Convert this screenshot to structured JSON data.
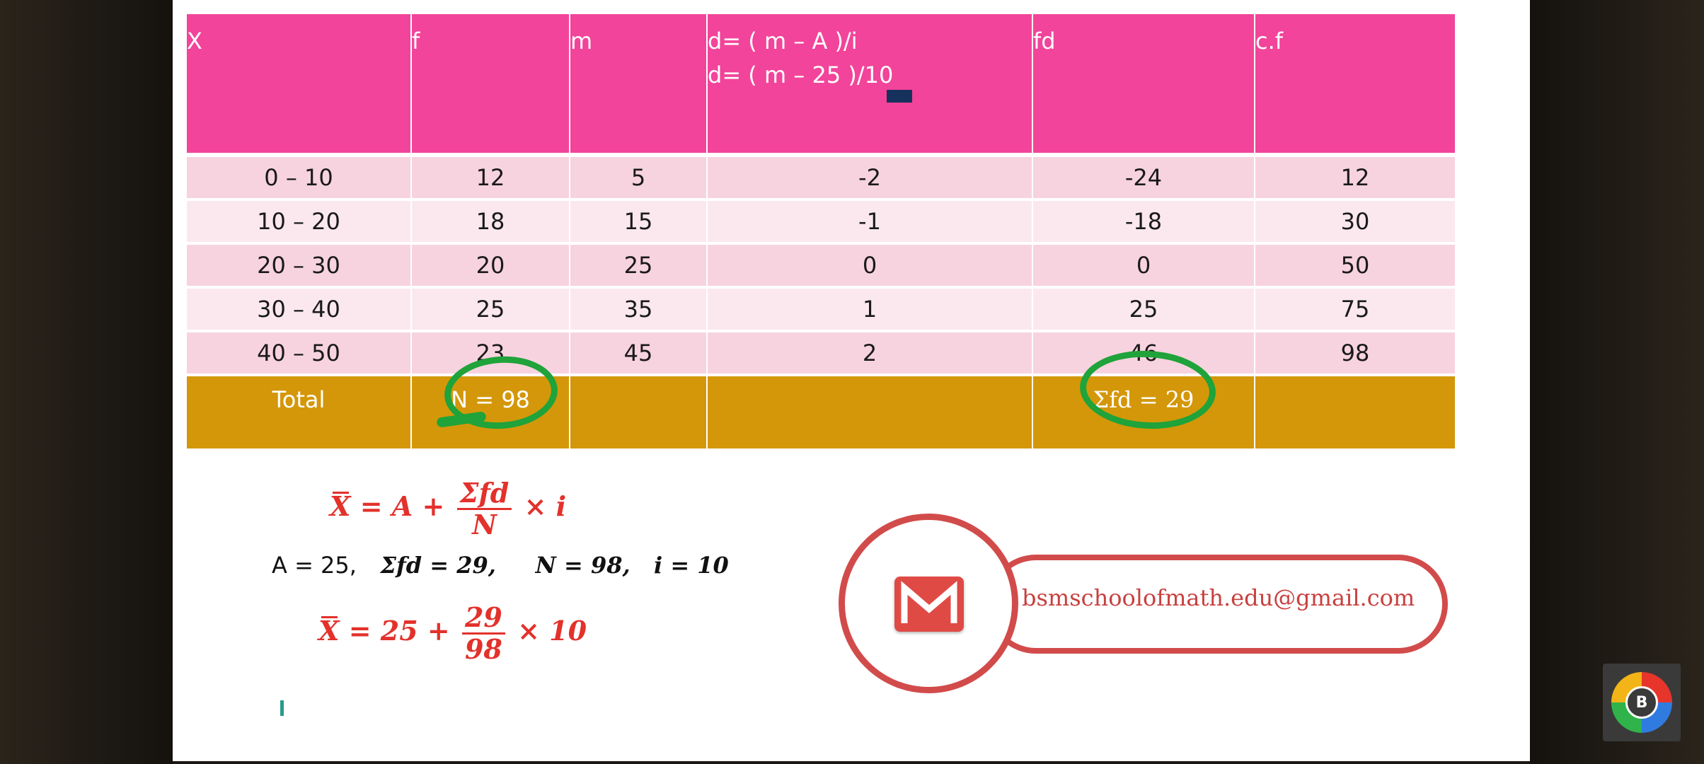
{
  "table": {
    "headers": {
      "x": "X",
      "f": "f",
      "m": "m",
      "d_line1": "d= ( m – A )/i",
      "d_line2": "d= ( m – 25 )/10",
      "fd": "fd",
      "cf": "c.f"
    },
    "rows": [
      {
        "x": "0 – 10",
        "f": "12",
        "m": "5",
        "d": "-2",
        "fd": "-24",
        "cf": "12"
      },
      {
        "x": "10 – 20",
        "f": "18",
        "m": "15",
        "d": "-1",
        "fd": "-18",
        "cf": "30"
      },
      {
        "x": "20 – 30",
        "f": "20",
        "m": "25",
        "d": "0",
        "fd": "0",
        "cf": "50"
      },
      {
        "x": "30 – 40",
        "f": "25",
        "m": "35",
        "d": "1",
        "fd": "25",
        "cf": "75"
      },
      {
        "x": "40 – 50",
        "f": "23",
        "m": "45",
        "d": "2",
        "fd": "46",
        "cf": "98"
      }
    ],
    "total": {
      "label": "Total",
      "f": "N = 98",
      "fd": "Σfd = 29"
    }
  },
  "formula": {
    "f1_xbar": "X",
    "f1_eq": "= A +",
    "f1_num": "Σfd",
    "f1_den": "N",
    "f1_times": "× i",
    "values_a": "A = 25,",
    "values_sfd": "Σfd = 29,",
    "values_n": "N = 98,",
    "values_i": "i = 10",
    "f3_xbar": "X",
    "f3_eq": "= 25 +",
    "f3_num": "29",
    "f3_den": "98",
    "f3_times": "× 10"
  },
  "contact": {
    "email": "bsmschoolofmath.edu@gmail.com",
    "icon": "gmail-icon"
  },
  "logo": {
    "letter": "B",
    "icon": "channel-logo-icon"
  },
  "colors": {
    "header_pink": "#f2449a",
    "row_odd": "#f7d3df",
    "row_even": "#fbe8ee",
    "total_gold": "#d4970a",
    "formula_red": "#e3312b",
    "highlight_green": "#1fa33a",
    "email_red": "#d24b4b"
  }
}
